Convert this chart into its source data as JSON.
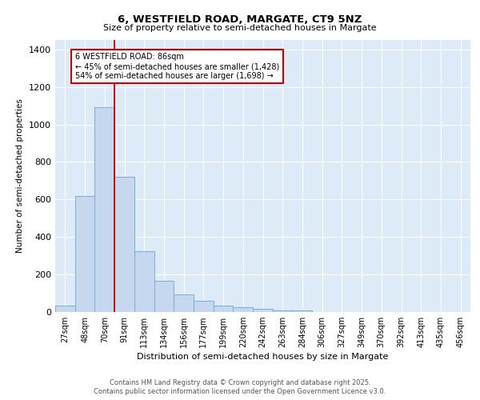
{
  "title1": "6, WESTFIELD ROAD, MARGATE, CT9 5NZ",
  "title2": "Size of property relative to semi-detached houses in Margate",
  "xlabel": "Distribution of semi-detached houses by size in Margate",
  "ylabel": "Number of semi-detached properties",
  "categories": [
    "27sqm",
    "48sqm",
    "70sqm",
    "91sqm",
    "113sqm",
    "134sqm",
    "156sqm",
    "177sqm",
    "199sqm",
    "220sqm",
    "242sqm",
    "263sqm",
    "284sqm",
    "306sqm",
    "327sqm",
    "349sqm",
    "370sqm",
    "392sqm",
    "413sqm",
    "435sqm",
    "456sqm"
  ],
  "values": [
    35,
    620,
    1090,
    720,
    325,
    165,
    95,
    60,
    35,
    25,
    15,
    10,
    10,
    0,
    0,
    0,
    0,
    0,
    0,
    0,
    0
  ],
  "bar_color": "#c5d8f0",
  "bar_edge_color": "#7aadd4",
  "bg_color": "#ddeaf8",
  "grid_color": "#ffffff",
  "vline_x_index": 2,
  "vline_color": "#cc0000",
  "annotation_title": "6 WESTFIELD ROAD: 86sqm",
  "annotation_line1": "← 45% of semi-detached houses are smaller (1,428)",
  "annotation_line2": "54% of semi-detached houses are larger (1,698) →",
  "annotation_box_color": "#cc0000",
  "footer1": "Contains HM Land Registry data © Crown copyright and database right 2025.",
  "footer2": "Contains public sector information licensed under the Open Government Licence v3.0.",
  "ylim": [
    0,
    1450
  ],
  "yticks": [
    0,
    200,
    400,
    600,
    800,
    1000,
    1200,
    1400
  ]
}
